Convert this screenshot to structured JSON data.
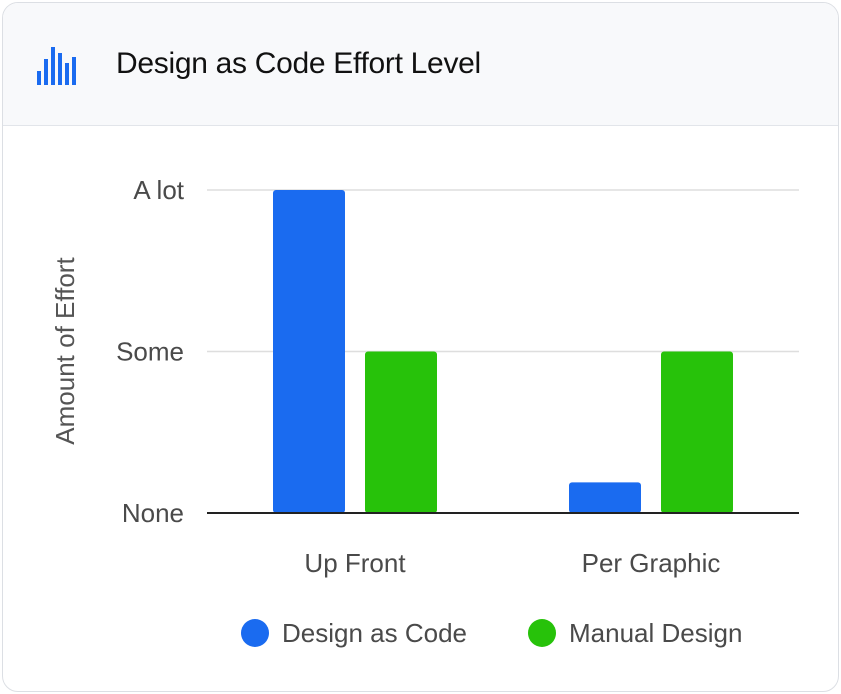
{
  "header": {
    "title": "Design as Code Effort Level",
    "icon": "bar-chart-icon",
    "icon_color": "#1a6bf0"
  },
  "chart_data": {
    "type": "bar",
    "title": "Design as Code Effort Level",
    "ylabel": "Amount of Effort",
    "xlabel": "",
    "categories": [
      "Up Front",
      "Per Graphic"
    ],
    "yticks": [
      {
        "value": 0,
        "label": "None"
      },
      {
        "value": 1,
        "label": "Some"
      },
      {
        "value": 2,
        "label": "A lot"
      }
    ],
    "ylim": [
      0,
      2
    ],
    "grid": true,
    "legend_position": "bottom",
    "series": [
      {
        "name": "Design as Code",
        "color": "#1a6bf0",
        "values": [
          2,
          0.19
        ]
      },
      {
        "name": "Manual Design",
        "color": "#27c20a",
        "values": [
          1,
          1
        ]
      }
    ]
  }
}
